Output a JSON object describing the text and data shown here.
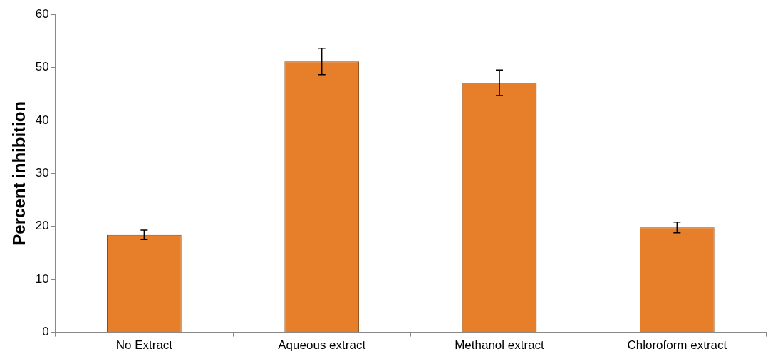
{
  "chart_data": {
    "type": "bar",
    "ylabel": "Percent inhibition",
    "categories": [
      "No Extract",
      "Aqueous extract",
      "Methanol extract",
      "Chloroform extract"
    ],
    "values": [
      18.4,
      51.1,
      47.1,
      19.8
    ],
    "color": "#e67e2a",
    "errors": [
      0.9,
      2.5,
      2.4,
      1.0
    ],
    "ylim": [
      0,
      60
    ],
    "yticks": [
      0,
      10,
      20,
      30,
      40,
      50,
      60
    ],
    "grid": false,
    "legend": false
  }
}
